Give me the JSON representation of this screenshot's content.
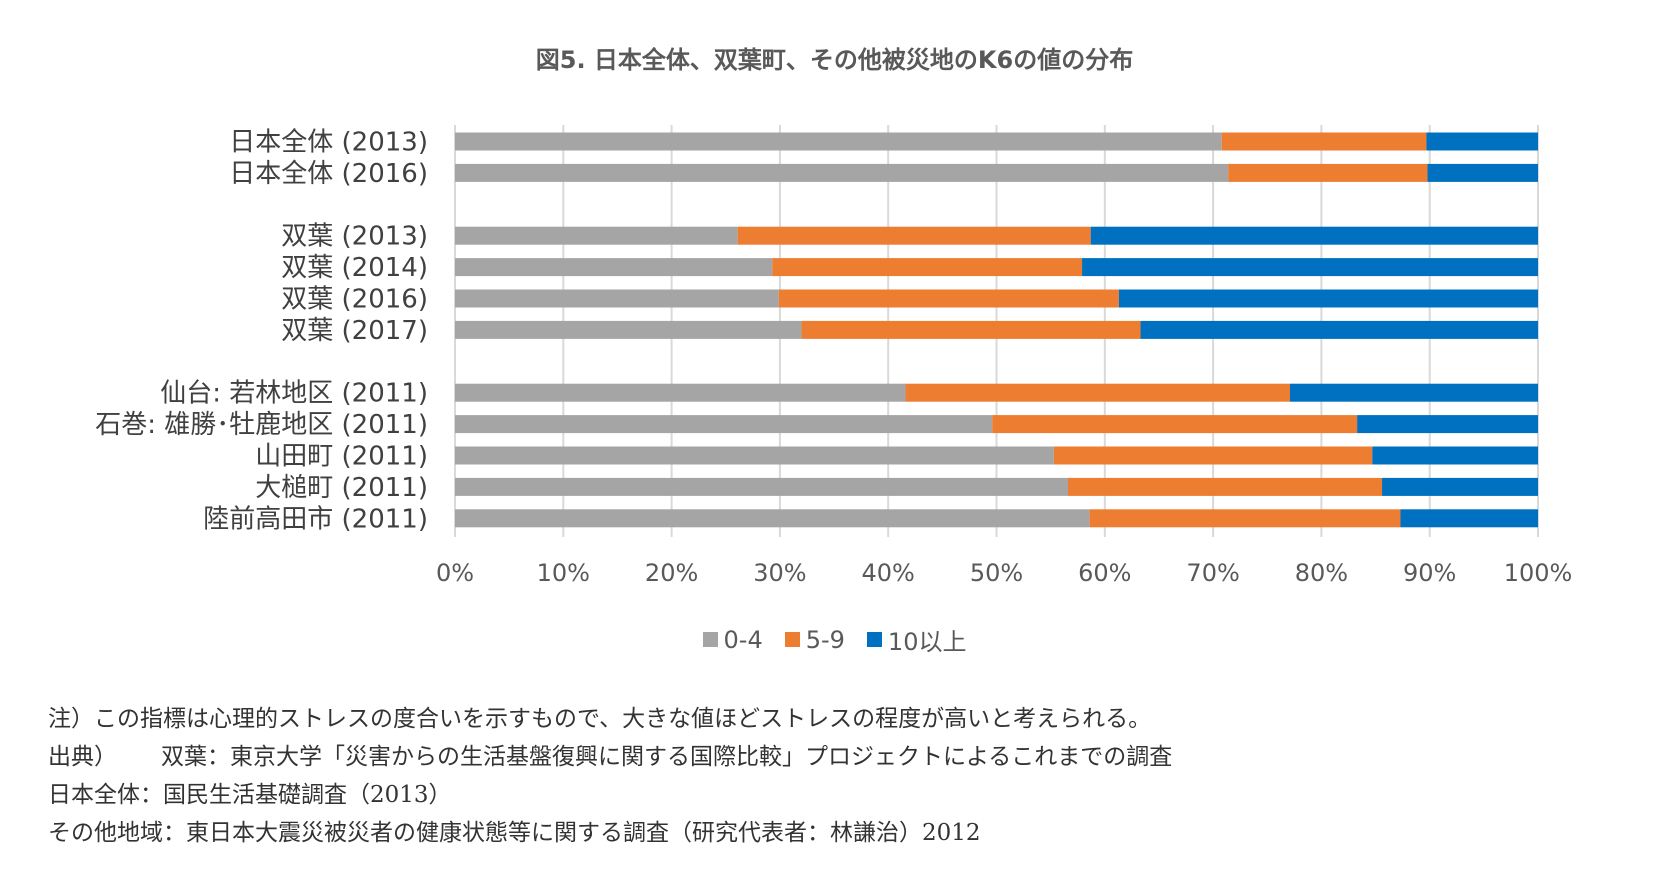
{
  "chart_data": {
    "type": "bar",
    "orientation": "horizontal",
    "stacked": true,
    "title": "図5. 日本全体、双葉町、その他被災地のK6の値の分布",
    "categories": [
      "日本全体 (2013)",
      "日本全体 (2016)",
      "双葉 (2013)",
      "双葉 (2014)",
      "双葉 (2016)",
      "双葉 (2017)",
      "仙台: 若林地区 (2011)",
      "石巻: 雄勝･牡鹿地区 (2011)",
      "山田町 (2011)",
      "大槌町 (2011)",
      "陸前高田市 (2011)"
    ],
    "groups": [
      [
        0,
        1
      ],
      [
        2,
        3,
        4,
        5
      ],
      [
        6,
        7,
        8,
        9,
        10
      ]
    ],
    "series": [
      {
        "name": "0-4",
        "color": "#a5a5a5",
        "values": [
          70.8,
          71.4,
          26.1,
          29.3,
          29.9,
          32.0,
          41.6,
          49.6,
          55.3,
          56.6,
          58.6
        ]
      },
      {
        "name": "5-9",
        "color": "#ed7d31",
        "values": [
          18.9,
          18.4,
          32.6,
          28.6,
          31.4,
          31.3,
          35.5,
          33.7,
          29.4,
          29.0,
          28.7
        ]
      },
      {
        "name": "10以上",
        "color": "#0070c0",
        "values": [
          10.3,
          10.2,
          41.3,
          42.1,
          38.7,
          36.7,
          22.9,
          16.7,
          15.3,
          14.4,
          12.7
        ]
      }
    ],
    "xlim": [
      0,
      100
    ],
    "x_ticks": [
      "0%",
      "10%",
      "20%",
      "30%",
      "40%",
      "50%",
      "60%",
      "70%",
      "80%",
      "90%",
      "100%"
    ],
    "grid": true,
    "legend_position": "bottom"
  },
  "notes": {
    "note": "注）この指標は心理的ストレスの度合いを示すもので、大きな値ほどストレスの程度が高いと考えられる。",
    "source_label": "出典）",
    "source_futaba": "双葉：東京大学「災害からの生活基盤復興に関する国際比較」プロジェクトによるこれまでの調査",
    "source_japan": "日本全体：国民生活基礎調査（2013）",
    "source_other": "その他地域：東日本大震災被災者の健康状態等に関する調査（研究代表者：林謙治）2012"
  }
}
